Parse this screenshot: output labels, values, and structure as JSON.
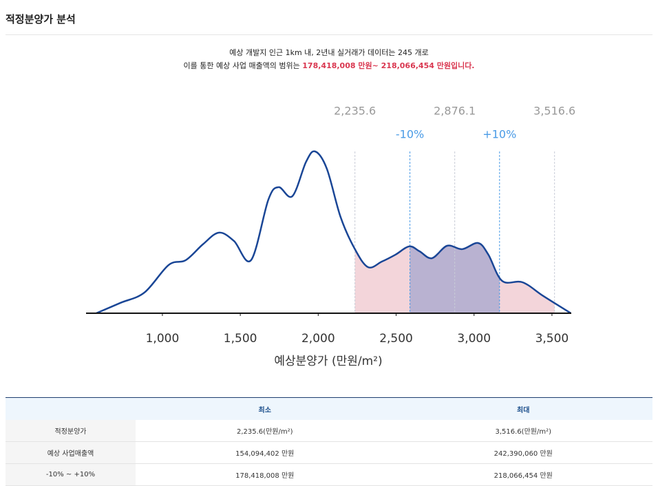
{
  "header": {
    "title": "적정분양가 분석"
  },
  "description": {
    "line1": "예상 개발지 인근 1km 내, 2년내 실거래가 데이터는 245 개로",
    "line2": "이를 통한 예상 사업 매출액의 범위는 ",
    "line2_highlight": "178,418,008 만원~ 218,066,454 만원입니다."
  },
  "chart_data": {
    "type": "area",
    "x_label": "예상분양가 (만원/m²)",
    "x": [
      576,
      731,
      885,
      1040,
      1150,
      1260,
      1362,
      1459,
      1569,
      1680,
      1746,
      1834,
      1922,
      1980,
      2055,
      2143,
      2231,
      2319,
      2408,
      2496,
      2584,
      2650,
      2730,
      2827,
      2924,
      3026,
      3092,
      3180,
      3312,
      3445,
      3621
    ],
    "series": [
      {
        "color": "#1a4696",
        "values": [
          0,
          6.4,
          12.8,
          29.8,
          32.8,
          42.6,
          49.8,
          44.7,
          32.8,
          70.2,
          77.9,
          72.3,
          93.6,
          100,
          89.4,
          59.6,
          40.4,
          28.5,
          31.9,
          36.2,
          41.3,
          38.3,
          34,
          41.7,
          39.6,
          43.4,
          36.2,
          20,
          19.1,
          10.6,
          0
        ]
      }
    ],
    "xlim": [
      510,
      3624
    ],
    "ylim": [
      0,
      100
    ],
    "xticks": [
      {
        "value": 1000,
        "label": "1,000"
      },
      {
        "value": 1500,
        "label": "1,500"
      },
      {
        "value": 2000,
        "label": "2,000"
      },
      {
        "value": 2500,
        "label": "2,500"
      },
      {
        "value": 3000,
        "label": "3,000"
      },
      {
        "value": 3500,
        "label": "3,500"
      }
    ],
    "markers": [
      {
        "value": 2235.6,
        "label": "2,235.6"
      },
      {
        "value": 2876.1,
        "label": "2,876.1"
      },
      {
        "value": 3516.6,
        "label": "3,516.6"
      }
    ],
    "range_markers": [
      {
        "value": 2588.5,
        "label": "-10%"
      },
      {
        "value": 3163.7,
        "label": "+10%"
      }
    ],
    "range_color": "#e9b3bb",
    "inner_range_color": "#9aa0cc",
    "marker_color": "#c8ccd6",
    "range_marker_color": "#4a9be6"
  },
  "table": {
    "columns": [
      "최소",
      "최대"
    ],
    "rows": [
      [
        "적정분양가",
        "2,235.6(만원/m²)",
        "3,516.6(만원/m²)"
      ],
      [
        "예상 사업매출액",
        "154,094,402 만원",
        "242,390,060 만원"
      ],
      [
        "-10% ~ +10%",
        "178,418,008 만원",
        "218,066,454 만원"
      ]
    ]
  }
}
